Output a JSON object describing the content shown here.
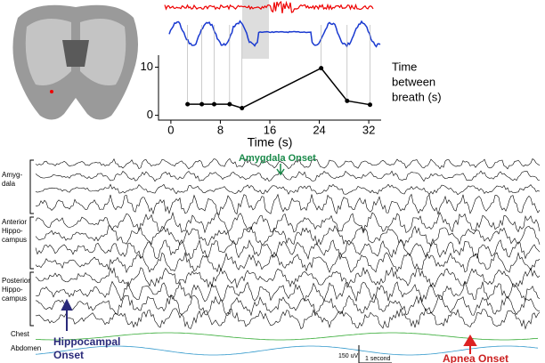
{
  "chart_data": {
    "type": "line",
    "x": [
      2.7,
      5,
      7,
      9.5,
      11.5,
      24.3,
      28.5,
      32.2
    ],
    "values": [
      2.3,
      2.3,
      2.3,
      2.3,
      1.5,
      9.8,
      3.0,
      2.2
    ],
    "color": "#000000",
    "xlabel": "Time (s)",
    "ylabel": [
      "Time",
      "between",
      "breath (s)"
    ],
    "xlim": [
      -2,
      34
    ],
    "ylim": [
      -1,
      12.5
    ],
    "xticks": [
      0,
      8,
      16,
      24,
      32
    ],
    "yticks": [
      0,
      10
    ]
  },
  "figure": {
    "amygdala_onset": "Amygdala Onset",
    "groups": [
      [
        "Amyg-",
        "dala"
      ],
      [
        "Anterior",
        "Hippo-",
        "campus"
      ],
      [
        "Posterior",
        "Hippo-",
        "campus"
      ]
    ],
    "chest": "Chest",
    "abdomen": "Abdomen",
    "hippocampal_onset": [
      "Hippocampal",
      "Onset"
    ],
    "scale_voltage": "150 uV",
    "scale_time": "1 second",
    "apnea_onset": "Apnea Onset"
  }
}
